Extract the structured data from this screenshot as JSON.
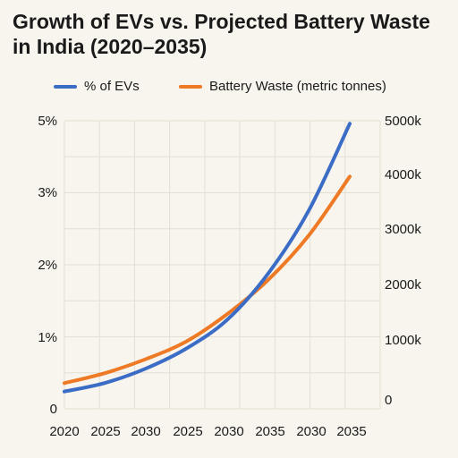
{
  "chart_data": {
    "type": "line",
    "title": "Growth of EVs vs. Projected Battery Waste in India (2020–2035)",
    "x_tick_labels": [
      "2020",
      "2025",
      "2030",
      "2025",
      "2030",
      "2035",
      "2030",
      "2035"
    ],
    "x": [
      0,
      1,
      2,
      3,
      4,
      5,
      6,
      7
    ],
    "y_left": {
      "ticks": [
        "5%",
        "3%",
        "2%",
        "1%",
        "0"
      ],
      "ylim": [
        0,
        5
      ]
    },
    "y_right": {
      "ticks": [
        "5000k",
        "4000k",
        "3000k",
        "2000k",
        "1000k",
        "0"
      ],
      "ylim": [
        0,
        5000
      ]
    },
    "grid": true,
    "legend_position": "top",
    "series": [
      {
        "name": "% of EVs",
        "axis": "left",
        "color": "#3b6cc6",
        "values": [
          0.3,
          0.45,
          0.7,
          1.05,
          1.55,
          2.35,
          3.45,
          4.95
        ]
      },
      {
        "name": "Battery Waste (metric tonnes)",
        "axis": "right",
        "color": "#ee7a25",
        "values": [
          300,
          480,
          730,
          1050,
          1540,
          2150,
          2950,
          4000
        ]
      }
    ]
  }
}
